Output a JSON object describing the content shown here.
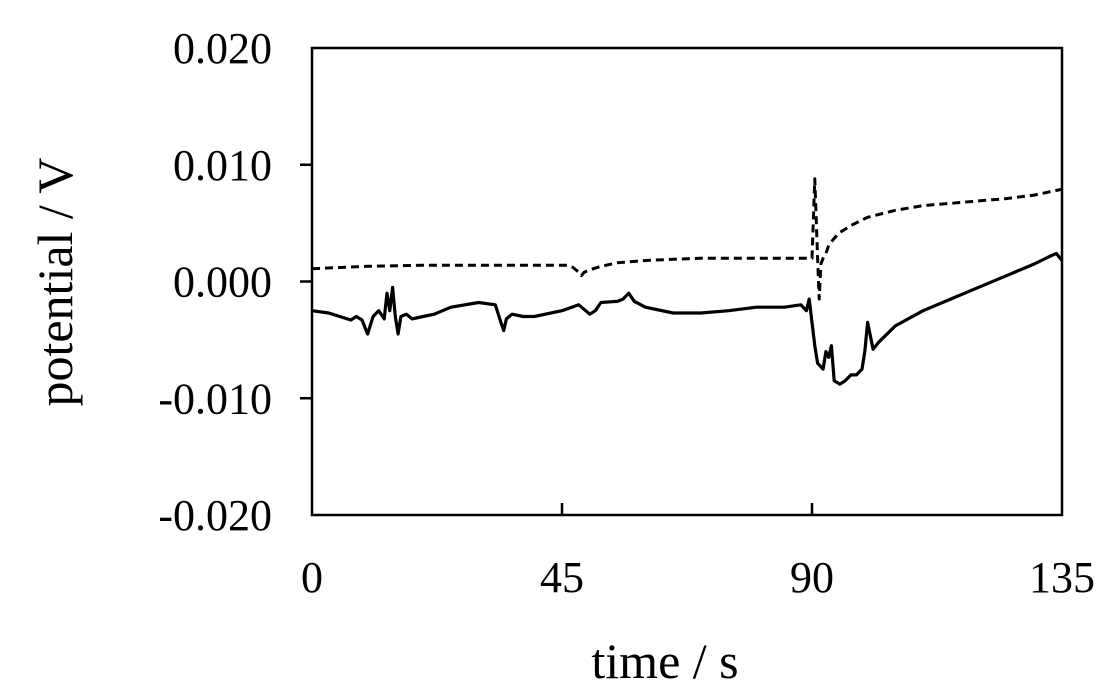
{
  "chart_data": {
    "type": "line",
    "title": "",
    "xlabel": "time / s",
    "ylabel": "potential / V",
    "xlim": [
      0,
      135
    ],
    "ylim": [
      -0.02,
      0.02
    ],
    "xticks": [
      0,
      45,
      90,
      135
    ],
    "xtick_labels": [
      "0",
      "45",
      "90",
      "135"
    ],
    "yticks": [
      0.02,
      0.01,
      0.0,
      -0.01,
      -0.02
    ],
    "ytick_labels": [
      "0.020",
      "0.010",
      "0.000",
      "-0.010",
      "-0.020"
    ],
    "grid": false,
    "legend": "none",
    "series": [
      {
        "style": "dashed",
        "color": "#000000",
        "x": [
          0,
          10,
          20,
          30,
          40,
          46,
          47,
          48,
          48.5,
          49,
          50,
          52,
          55,
          60,
          65,
          70,
          80,
          89,
          90,
          90.5,
          91,
          91.3,
          91.6,
          92,
          92.5,
          93,
          94,
          95,
          97,
          100,
          105,
          110,
          115,
          120,
          125,
          130,
          134,
          135
        ],
        "y": [
          0.0011,
          0.0013,
          0.0014,
          0.0014,
          0.0014,
          0.0014,
          0.0012,
          0.0008,
          0.0005,
          0.0008,
          0.001,
          0.0013,
          0.0016,
          0.0018,
          0.0019,
          0.002,
          0.002,
          0.002,
          0.002,
          0.0088,
          0.002,
          -0.0015,
          0.0015,
          0.002,
          0.0024,
          0.0031,
          0.0037,
          0.0042,
          0.0048,
          0.0055,
          0.0061,
          0.0065,
          0.0067,
          0.0069,
          0.0071,
          0.0074,
          0.0078,
          0.0079
        ]
      },
      {
        "style": "solid",
        "color": "#000000",
        "x": [
          0,
          3,
          5,
          7,
          8,
          9,
          10,
          11,
          12,
          13,
          13.5,
          14,
          14.5,
          15,
          15.5,
          16,
          17,
          18,
          20,
          22,
          25,
          30,
          33,
          34,
          34.5,
          35,
          36,
          38,
          40,
          45,
          48,
          50,
          51,
          52,
          55,
          56,
          57,
          58,
          60,
          65,
          70,
          75,
          80,
          85,
          88,
          89,
          89.5,
          90,
          90.5,
          91,
          92,
          92.5,
          93,
          93.5,
          94,
          95,
          96,
          97,
          98,
          99,
          99.5,
          100,
          101,
          102,
          105,
          110,
          115,
          120,
          125,
          130,
          133,
          134,
          135
        ],
        "y": [
          -0.0025,
          -0.0027,
          -0.003,
          -0.0033,
          -0.003,
          -0.0033,
          -0.0045,
          -0.003,
          -0.0025,
          -0.0032,
          -0.001,
          -0.0025,
          -0.0005,
          -0.003,
          -0.0045,
          -0.003,
          -0.0028,
          -0.0032,
          -0.003,
          -0.0028,
          -0.0022,
          -0.0018,
          -0.002,
          -0.0035,
          -0.0042,
          -0.0032,
          -0.0028,
          -0.003,
          -0.003,
          -0.0025,
          -0.002,
          -0.0028,
          -0.0025,
          -0.0018,
          -0.0017,
          -0.0015,
          -0.001,
          -0.0017,
          -0.0022,
          -0.0027,
          -0.0027,
          -0.0025,
          -0.0022,
          -0.0022,
          -0.002,
          -0.0025,
          -0.0015,
          -0.0035,
          -0.0055,
          -0.007,
          -0.0075,
          -0.006,
          -0.0065,
          -0.0055,
          -0.0085,
          -0.0088,
          -0.0085,
          -0.008,
          -0.008,
          -0.0075,
          -0.006,
          -0.0035,
          -0.0058,
          -0.0052,
          -0.0038,
          -0.0025,
          -0.0015,
          -0.0005,
          0.0005,
          0.0015,
          0.0022,
          0.0024,
          0.0018
        ]
      }
    ]
  }
}
